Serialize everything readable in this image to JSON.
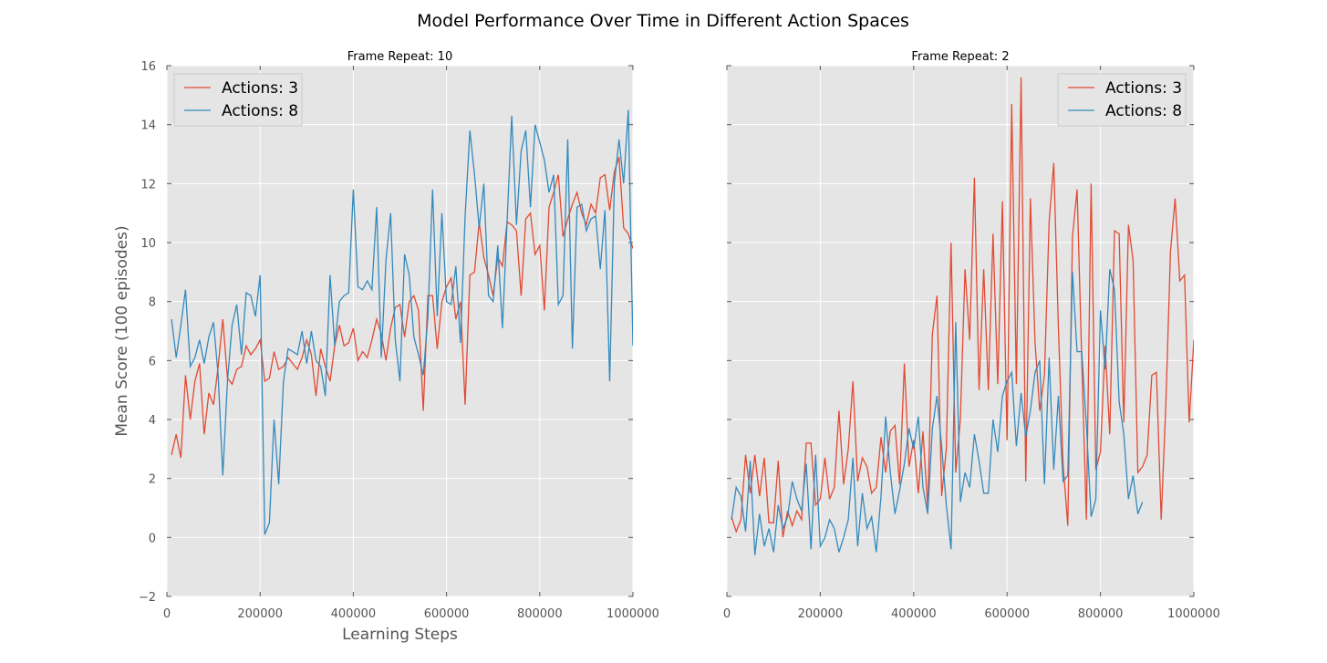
{
  "figure_title": "Model Performance Over Time in Different Action Spaces",
  "colors": {
    "actions_3": "#E24A33",
    "actions_8": "#348ABD",
    "panel_bg": "#E5E5E5",
    "grid": "#ffffff"
  },
  "chart_data": [
    {
      "type": "line",
      "title": "Frame Repeat: 10",
      "xlabel": "Learning Steps",
      "ylabel": "Mean Score (100 episodes)",
      "xlim": [
        0,
        1000000
      ],
      "ylim": [
        -2,
        16
      ],
      "xticks": [
        0,
        200000,
        400000,
        600000,
        800000,
        1000000
      ],
      "xtick_labels": [
        "0",
        "200000",
        "400000",
        "600000",
        "800000",
        "1000000"
      ],
      "yticks": [
        -2,
        0,
        2,
        4,
        6,
        8,
        10,
        12,
        14,
        16
      ],
      "ytick_labels": [
        "−2",
        "0",
        "2",
        "4",
        "6",
        "8",
        "10",
        "12",
        "14",
        "16"
      ],
      "grid": true,
      "legend_position": "top-left",
      "series": [
        {
          "name": "Actions: 3",
          "color": "#E24A33",
          "x": [
            10000,
            20000,
            30000,
            40000,
            50000,
            60000,
            70000,
            80000,
            90000,
            100000,
            110000,
            120000,
            130000,
            140000,
            150000,
            160000,
            170000,
            180000,
            190000,
            200000,
            210000,
            220000,
            230000,
            240000,
            250000,
            260000,
            270000,
            280000,
            290000,
            300000,
            310000,
            320000,
            330000,
            340000,
            350000,
            360000,
            370000,
            380000,
            390000,
            400000,
            410000,
            420000,
            430000,
            440000,
            450000,
            460000,
            470000,
            480000,
            490000,
            500000,
            510000,
            520000,
            530000,
            540000,
            550000,
            560000,
            570000,
            580000,
            590000,
            600000,
            610000,
            620000,
            630000,
            640000,
            650000,
            660000,
            670000,
            680000,
            690000,
            700000,
            710000,
            720000,
            730000,
            740000,
            750000,
            760000,
            770000,
            780000,
            790000,
            800000,
            810000,
            820000,
            830000,
            840000,
            850000,
            860000,
            870000,
            880000,
            890000,
            900000,
            910000,
            920000,
            930000,
            940000,
            950000,
            960000,
            970000,
            980000,
            990000,
            1000000
          ],
          "y": [
            2.8,
            3.5,
            2.7,
            5.5,
            4.0,
            5.3,
            5.9,
            3.5,
            4.9,
            4.5,
            5.8,
            7.4,
            5.4,
            5.2,
            5.7,
            5.8,
            6.5,
            6.2,
            6.4,
            6.7,
            5.3,
            5.4,
            6.3,
            5.7,
            5.8,
            6.1,
            5.9,
            5.7,
            6.1,
            6.7,
            6.2,
            4.8,
            6.4,
            5.8,
            5.3,
            6.5,
            7.2,
            6.5,
            6.6,
            7.1,
            6.0,
            6.3,
            6.1,
            6.7,
            7.4,
            6.9,
            6.0,
            7.1,
            7.8,
            7.9,
            6.8,
            8.0,
            8.2,
            7.7,
            4.3,
            8.2,
            8.2,
            6.4,
            8.0,
            8.5,
            8.8,
            7.4,
            8.0,
            4.5,
            8.9,
            9.0,
            10.7,
            9.5,
            8.9,
            8.2,
            9.5,
            9.2,
            10.7,
            10.6,
            10.4,
            8.2,
            10.8,
            11.0,
            9.6,
            9.9,
            7.7,
            11.2,
            11.7,
            12.3,
            10.2,
            10.8,
            11.3,
            11.7,
            11.0,
            10.6,
            11.3,
            11.0,
            12.2,
            12.3,
            11.1,
            12.4,
            12.9,
            10.5,
            10.3,
            9.8
          ]
        },
        {
          "name": "Actions: 8",
          "color": "#348ABD",
          "x": [
            10000,
            20000,
            30000,
            40000,
            50000,
            60000,
            70000,
            80000,
            90000,
            100000,
            110000,
            120000,
            130000,
            140000,
            150000,
            160000,
            170000,
            180000,
            190000,
            200000,
            210000,
            220000,
            230000,
            240000,
            250000,
            260000,
            270000,
            280000,
            290000,
            300000,
            310000,
            320000,
            330000,
            340000,
            350000,
            360000,
            370000,
            380000,
            390000,
            400000,
            410000,
            420000,
            430000,
            440000,
            450000,
            460000,
            470000,
            480000,
            490000,
            500000,
            510000,
            520000,
            530000,
            540000,
            550000,
            560000,
            570000,
            580000,
            590000,
            600000,
            610000,
            620000,
            630000,
            640000,
            650000,
            660000,
            670000,
            680000,
            690000,
            700000,
            710000,
            720000,
            730000,
            740000,
            750000,
            760000,
            770000,
            780000,
            790000,
            800000,
            810000,
            820000,
            830000,
            840000,
            850000,
            860000,
            870000,
            880000,
            890000,
            900000,
            910000,
            920000,
            930000,
            940000,
            950000,
            960000,
            970000,
            980000,
            990000,
            1000000
          ],
          "y": [
            7.4,
            6.1,
            7.2,
            8.4,
            5.8,
            6.1,
            6.7,
            5.9,
            6.8,
            7.3,
            5.5,
            2.1,
            5.3,
            7.2,
            7.9,
            6.2,
            8.3,
            8.2,
            7.5,
            8.9,
            0.1,
            0.5,
            4.0,
            1.8,
            5.3,
            6.4,
            6.3,
            6.2,
            7.0,
            5.9,
            7.0,
            6.0,
            5.8,
            4.8,
            8.9,
            6.5,
            8.0,
            8.2,
            8.3,
            11.8,
            8.5,
            8.4,
            8.7,
            8.4,
            11.2,
            6.1,
            9.4,
            11.0,
            6.7,
            5.3,
            9.6,
            8.9,
            6.8,
            6.2,
            5.5,
            7.5,
            11.8,
            7.5,
            11.0,
            8.0,
            7.9,
            9.2,
            6.6,
            10.9,
            13.8,
            12.3,
            10.5,
            12.0,
            8.2,
            8.0,
            9.9,
            7.1,
            10.7,
            14.3,
            10.6,
            13.1,
            13.8,
            11.2,
            14.0,
            13.4,
            12.8,
            11.7,
            12.3,
            7.9,
            8.2,
            13.5,
            6.4,
            11.2,
            11.3,
            10.4,
            10.8,
            10.9,
            9.1,
            11.1,
            5.3,
            12.0,
            13.5,
            12.0,
            14.5,
            6.5
          ]
        }
      ]
    },
    {
      "type": "line",
      "title": "Frame Repeat: 2",
      "xlabel": "",
      "ylabel": "",
      "xlim": [
        0,
        1000000
      ],
      "ylim": [
        -2,
        16
      ],
      "xticks": [
        0,
        200000,
        400000,
        600000,
        800000,
        1000000
      ],
      "xtick_labels": [
        "0",
        "200000",
        "400000",
        "600000",
        "800000",
        "1000000"
      ],
      "yticks": [
        -2,
        0,
        2,
        4,
        6,
        8,
        10,
        12,
        14,
        16
      ],
      "ytick_labels": [],
      "grid": true,
      "legend_position": "top-right",
      "series": [
        {
          "name": "Actions: 3",
          "color": "#E24A33",
          "x": [
            10000,
            20000,
            30000,
            40000,
            50000,
            60000,
            70000,
            80000,
            90000,
            100000,
            110000,
            120000,
            130000,
            140000,
            150000,
            160000,
            170000,
            180000,
            190000,
            200000,
            210000,
            220000,
            230000,
            240000,
            250000,
            260000,
            270000,
            280000,
            290000,
            300000,
            310000,
            320000,
            330000,
            340000,
            350000,
            360000,
            370000,
            380000,
            390000,
            400000,
            410000,
            420000,
            430000,
            440000,
            450000,
            460000,
            470000,
            480000,
            490000,
            500000,
            510000,
            520000,
            530000,
            540000,
            550000,
            560000,
            570000,
            580000,
            590000,
            600000,
            610000,
            620000,
            630000,
            640000,
            650000,
            660000,
            670000,
            680000,
            690000,
            700000,
            710000,
            720000,
            730000,
            740000,
            750000,
            760000,
            770000,
            780000,
            790000,
            800000,
            810000,
            820000,
            830000,
            840000,
            850000,
            860000,
            870000,
            880000,
            890000,
            900000,
            910000,
            920000,
            930000,
            940000,
            950000,
            960000,
            970000,
            980000,
            990000,
            1000000
          ],
          "y": [
            0.7,
            0.2,
            0.6,
            2.8,
            1.5,
            2.8,
            1.4,
            2.7,
            0.5,
            0.5,
            2.6,
            0.0,
            0.9,
            0.4,
            0.9,
            0.6,
            3.2,
            3.2,
            1.1,
            1.3,
            2.7,
            1.3,
            1.7,
            4.3,
            1.8,
            3.0,
            5.3,
            1.9,
            2.7,
            2.4,
            1.5,
            1.7,
            3.4,
            2.2,
            3.6,
            3.8,
            1.8,
            5.9,
            2.4,
            3.3,
            1.5,
            3.6,
            1.0,
            6.9,
            8.2,
            1.4,
            3.0,
            10.0,
            2.2,
            4.0,
            9.1,
            6.7,
            12.2,
            5.0,
            9.1,
            5.0,
            10.3,
            5.2,
            11.4,
            3.3,
            14.7,
            5.2,
            15.6,
            1.9,
            11.5,
            6.6,
            4.3,
            5.5,
            10.7,
            12.7,
            7.1,
            2.5,
            0.4,
            10.2,
            11.8,
            6.0,
            0.6,
            12.0,
            2.3,
            2.9,
            6.5,
            3.5,
            10.4,
            10.3,
            3.9,
            10.6,
            9.4,
            2.2,
            2.4,
            2.8,
            5.5,
            5.6,
            0.6,
            4.5,
            9.7,
            11.5,
            8.7,
            8.9,
            3.9,
            6.7
          ]
        },
        {
          "name": "Actions: 8",
          "color": "#348ABD",
          "x": [
            10000,
            20000,
            30000,
            40000,
            50000,
            60000,
            70000,
            80000,
            90000,
            100000,
            110000,
            120000,
            130000,
            140000,
            150000,
            160000,
            170000,
            180000,
            190000,
            200000,
            210000,
            220000,
            230000,
            240000,
            250000,
            260000,
            270000,
            280000,
            290000,
            300000,
            310000,
            320000,
            330000,
            340000,
            350000,
            360000,
            370000,
            380000,
            390000,
            400000,
            410000,
            420000,
            430000,
            440000,
            450000,
            460000,
            470000,
            480000,
            490000,
            500000,
            510000,
            520000,
            530000,
            540000,
            550000,
            560000,
            570000,
            580000,
            590000,
            600000,
            610000,
            620000,
            630000,
            640000,
            650000,
            660000,
            670000,
            680000,
            690000,
            700000,
            710000,
            720000,
            730000,
            740000,
            750000,
            760000,
            770000,
            780000,
            790000,
            800000,
            810000,
            820000,
            830000,
            840000,
            850000,
            860000,
            870000,
            880000,
            890000
          ],
          "y": [
            0.6,
            1.7,
            1.4,
            0.2,
            2.6,
            -0.6,
            0.8,
            -0.3,
            0.3,
            -0.5,
            1.1,
            0.3,
            0.7,
            1.9,
            1.3,
            0.9,
            2.5,
            -0.4,
            2.8,
            -0.3,
            0.0,
            0.6,
            0.3,
            -0.5,
            0.0,
            0.6,
            2.7,
            -0.3,
            1.5,
            0.3,
            0.7,
            -0.5,
            1.4,
            4.1,
            2.2,
            0.8,
            1.6,
            2.5,
            3.7,
            3.0,
            4.1,
            1.7,
            0.8,
            3.7,
            4.8,
            3.1,
            1.1,
            -0.4,
            7.3,
            1.2,
            2.2,
            1.7,
            3.5,
            2.6,
            1.5,
            1.5,
            4.0,
            2.9,
            4.8,
            5.3,
            5.6,
            3.1,
            4.9,
            3.4,
            4.3,
            5.6,
            6.0,
            1.8,
            6.1,
            2.3,
            4.8,
            1.9,
            2.1,
            9.0,
            6.3,
            6.3,
            3.8,
            0.7,
            1.3,
            7.7,
            5.7,
            9.1,
            8.4,
            4.6,
            3.5,
            1.3,
            2.1,
            0.8,
            1.2
          ]
        }
      ]
    }
  ]
}
